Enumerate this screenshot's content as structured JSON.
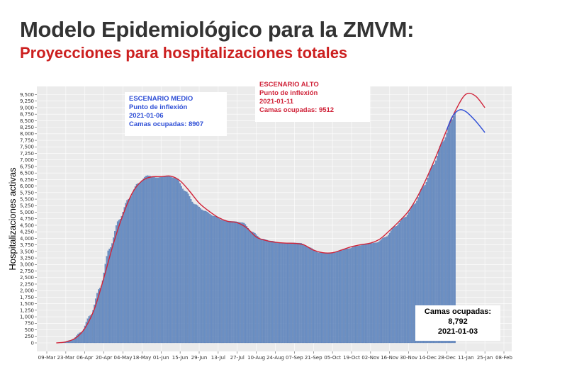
{
  "title": "Modelo Epidemiológico para la ZMVM:",
  "subtitle": "Proyecciones para hospitalizaciones totales",
  "colors": {
    "title": "#333333",
    "subtitle": "#cc1f1f",
    "bars": "#6a8fc4",
    "scenario_high": "#d0243a",
    "scenario_medium": "#2f4fd6",
    "panel": "#ebebeb"
  },
  "chart_data": {
    "type": "bar",
    "ylabel": "Hospitalizaciones activas",
    "ylim": [
      0,
      9800
    ],
    "grid": true,
    "yticks": [
      0,
      250,
      500,
      750,
      1000,
      1250,
      1500,
      1750,
      2000,
      2250,
      2500,
      2750,
      3000,
      3250,
      3500,
      3750,
      4000,
      4250,
      4500,
      4750,
      5000,
      5250,
      5500,
      5750,
      6000,
      6250,
      6500,
      6750,
      7000,
      7250,
      7500,
      7750,
      8000,
      8250,
      8500,
      8750,
      9000,
      9250,
      9500
    ],
    "ytick_labels": [
      "0",
      "250",
      "500",
      "750",
      "1,000",
      "1,250",
      "1,500",
      "1,750",
      "2,000",
      "2,250",
      "2,500",
      "2,750",
      "3,000",
      "3,250",
      "3,500",
      "3,750",
      "4,000",
      "4,250",
      "4,500",
      "4,750",
      "5,000",
      "5,250",
      "5,500",
      "5,750",
      "6,000",
      "6,250",
      "6,500",
      "6,750",
      "7,000",
      "7,250",
      "7,500",
      "7,750",
      "8,000",
      "8,250",
      "8,500",
      "8,750",
      "9,000",
      "9,250",
      "9,500"
    ],
    "xtick_dates": [
      "2020-03-09",
      "2020-03-23",
      "2020-04-06",
      "2020-04-20",
      "2020-05-04",
      "2020-05-18",
      "2020-06-01",
      "2020-06-15",
      "2020-06-29",
      "2020-07-13",
      "2020-07-27",
      "2020-08-10",
      "2020-08-24",
      "2020-09-07",
      "2020-09-21",
      "2020-10-05",
      "2020-10-19",
      "2020-11-02",
      "2020-11-16",
      "2020-11-30",
      "2020-12-14",
      "2020-12-28",
      "2021-01-11",
      "2021-01-25",
      "2021-02-08"
    ],
    "xtick_labels": [
      "09-Mar",
      "23-Mar",
      "06-Apr",
      "20-Apr",
      "04-May",
      "18-May",
      "01-Jun",
      "15-Jun",
      "29-Jun",
      "13-Jul",
      "27-Jul",
      "10-Aug",
      "24-Aug",
      "07-Sep",
      "21-Sep",
      "05-Oct",
      "19-Oct",
      "02-Nov",
      "16-Nov",
      "30-Nov",
      "14-Dec",
      "28-Dec",
      "11-Jan",
      "25-Jan",
      "08-Feb"
    ],
    "bars_series": {
      "name": "Hospitalizaciones activas",
      "keypoints": [
        [
          "2020-03-20",
          20
        ],
        [
          "2020-03-27",
          100
        ],
        [
          "2020-04-03",
          400
        ],
        [
          "2020-04-10",
          1050
        ],
        [
          "2020-04-17",
          2100
        ],
        [
          "2020-04-24",
          3600
        ],
        [
          "2020-05-01",
          4700
        ],
        [
          "2020-05-08",
          5500
        ],
        [
          "2020-05-15",
          6100
        ],
        [
          "2020-05-22",
          6400
        ],
        [
          "2020-05-29",
          6320
        ],
        [
          "2020-06-05",
          6380
        ],
        [
          "2020-06-12",
          6300
        ],
        [
          "2020-06-19",
          5800
        ],
        [
          "2020-06-26",
          5300
        ],
        [
          "2020-07-03",
          5050
        ],
        [
          "2020-07-10",
          4850
        ],
        [
          "2020-07-17",
          4680
        ],
        [
          "2020-07-24",
          4650
        ],
        [
          "2020-07-31",
          4600
        ],
        [
          "2020-08-07",
          4250
        ],
        [
          "2020-08-14",
          3980
        ],
        [
          "2020-08-21",
          3900
        ],
        [
          "2020-08-28",
          3820
        ],
        [
          "2020-09-04",
          3830
        ],
        [
          "2020-09-11",
          3820
        ],
        [
          "2020-09-18",
          3650
        ],
        [
          "2020-09-25",
          3450
        ],
        [
          "2020-10-02",
          3430
        ],
        [
          "2020-10-09",
          3500
        ],
        [
          "2020-10-16",
          3600
        ],
        [
          "2020-10-23",
          3700
        ],
        [
          "2020-10-30",
          3780
        ],
        [
          "2020-11-06",
          3830
        ],
        [
          "2020-11-13",
          4050
        ],
        [
          "2020-11-20",
          4450
        ],
        [
          "2020-11-27",
          4800
        ],
        [
          "2020-12-04",
          5300
        ],
        [
          "2020-12-11",
          6000
        ],
        [
          "2020-12-18",
          6800
        ],
        [
          "2020-12-25",
          7700
        ],
        [
          "2021-01-01",
          8550
        ],
        [
          "2021-01-03",
          8792
        ]
      ]
    },
    "series": [
      {
        "name": "ESCENARIO ALTO",
        "color": "#d0243a",
        "points": [
          [
            "2020-03-16",
            0
          ],
          [
            "2020-03-23",
            40
          ],
          [
            "2020-03-30",
            180
          ],
          [
            "2020-04-06",
            560
          ],
          [
            "2020-04-13",
            1300
          ],
          [
            "2020-04-20",
            2500
          ],
          [
            "2020-04-27",
            3800
          ],
          [
            "2020-05-04",
            4900
          ],
          [
            "2020-05-11",
            5750
          ],
          [
            "2020-05-18",
            6200
          ],
          [
            "2020-05-25",
            6350
          ],
          [
            "2020-06-01",
            6360
          ],
          [
            "2020-06-08",
            6380
          ],
          [
            "2020-06-15",
            6200
          ],
          [
            "2020-06-22",
            5800
          ],
          [
            "2020-06-29",
            5350
          ],
          [
            "2020-07-06",
            5050
          ],
          [
            "2020-07-13",
            4800
          ],
          [
            "2020-07-20",
            4650
          ],
          [
            "2020-07-27",
            4600
          ],
          [
            "2020-08-03",
            4400
          ],
          [
            "2020-08-10",
            4050
          ],
          [
            "2020-08-17",
            3920
          ],
          [
            "2020-08-24",
            3850
          ],
          [
            "2020-08-31",
            3820
          ],
          [
            "2020-09-07",
            3810
          ],
          [
            "2020-09-14",
            3750
          ],
          [
            "2020-09-21",
            3550
          ],
          [
            "2020-09-28",
            3450
          ],
          [
            "2020-10-05",
            3450
          ],
          [
            "2020-10-12",
            3560
          ],
          [
            "2020-10-19",
            3680
          ],
          [
            "2020-10-26",
            3760
          ],
          [
            "2020-11-02",
            3820
          ],
          [
            "2020-11-09",
            3980
          ],
          [
            "2020-11-16",
            4300
          ],
          [
            "2020-11-23",
            4650
          ],
          [
            "2020-11-30",
            5050
          ],
          [
            "2020-12-07",
            5650
          ],
          [
            "2020-12-14",
            6400
          ],
          [
            "2020-12-21",
            7250
          ],
          [
            "2020-12-28",
            8150
          ],
          [
            "2021-01-04",
            8950
          ],
          [
            "2021-01-11",
            9512
          ],
          [
            "2021-01-18",
            9450
          ],
          [
            "2021-01-25",
            9000
          ]
        ]
      },
      {
        "name": "ESCENARIO MEDIO",
        "color": "#2f4fd6",
        "points": [
          [
            "2020-12-28",
            8150
          ],
          [
            "2021-01-01",
            8650
          ],
          [
            "2021-01-06",
            8907
          ],
          [
            "2021-01-11",
            8850
          ],
          [
            "2021-01-18",
            8500
          ],
          [
            "2021-01-25",
            8050
          ]
        ]
      }
    ],
    "annotations": {
      "medium": {
        "lines": [
          "ESCENARIO MEDIO",
          "Punto de inflexión",
          "2021-01-06",
          "Camas ocupadas: 8907"
        ],
        "color": "#2f4fd6"
      },
      "high": {
        "lines": [
          "ESCENARIO ALTO",
          "Punto de inflexión",
          "2021-01-11",
          "Camas ocupadas: 9512"
        ],
        "color": "#d0243a"
      },
      "current": {
        "lines": [
          "Camas ocupadas:",
          "8,792",
          "2021-01-03"
        ]
      }
    }
  }
}
